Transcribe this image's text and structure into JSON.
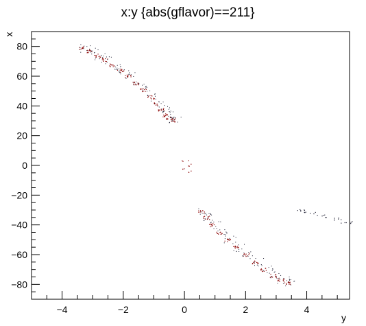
{
  "chart_data": {
    "type": "scatter",
    "title": "x:y {abs(gflavor)==211}",
    "xlabel": "y",
    "ylabel": "x",
    "xlim": [
      -5,
      5.4
    ],
    "ylim": [
      -90,
      90
    ],
    "x_ticks": [
      "−4",
      "−2",
      "0",
      "2",
      "4"
    ],
    "x_tick_values": [
      -4,
      -2,
      0,
      2,
      4
    ],
    "y_ticks": [
      "−80",
      "−60",
      "−40",
      "−20",
      "0",
      "20",
      "40",
      "60",
      "80"
    ],
    "y_tick_values": [
      -80,
      -60,
      -40,
      -20,
      0,
      20,
      40,
      60,
      80
    ],
    "grid": false,
    "colors": {
      "frame": "#000000",
      "dense": "#8b0000",
      "sparse": "#1a1a2e"
    },
    "series": [
      {
        "values_note": "",
        "points": [
          [
            -3.35,
            79
          ],
          [
            -3.1,
            77
          ],
          [
            -2.85,
            74
          ],
          [
            -2.6,
            71
          ],
          [
            -2.35,
            67.5
          ],
          [
            -2.1,
            64
          ],
          [
            -1.85,
            60
          ],
          [
            -1.6,
            55.5
          ],
          [
            -1.35,
            51
          ],
          [
            -1.1,
            46
          ],
          [
            -0.9,
            41.5
          ],
          [
            -0.75,
            37.5
          ],
          [
            -0.6,
            34
          ],
          [
            -0.5,
            31.5
          ],
          [
            -0.4,
            30.5
          ],
          [
            0.55,
            -31
          ],
          [
            0.7,
            -35
          ],
          [
            0.9,
            -40
          ],
          [
            1.15,
            -45
          ],
          [
            1.4,
            -50
          ],
          [
            1.7,
            -55
          ],
          [
            2.0,
            -60
          ],
          [
            2.3,
            -65
          ],
          [
            2.6,
            -70
          ],
          [
            2.9,
            -74
          ],
          [
            3.15,
            -77
          ],
          [
            3.35,
            -79
          ],
          [
            0.02,
            3
          ],
          [
            0.02,
            -3
          ],
          [
            0.2,
            -3.5
          ],
          [
            0.1,
            0.5
          ],
          [
            3.7,
            -30
          ],
          [
            4.1,
            -32
          ],
          [
            4.5,
            -34
          ],
          [
            4.9,
            -36
          ],
          [
            5.3,
            -38
          ]
        ]
      }
    ]
  }
}
